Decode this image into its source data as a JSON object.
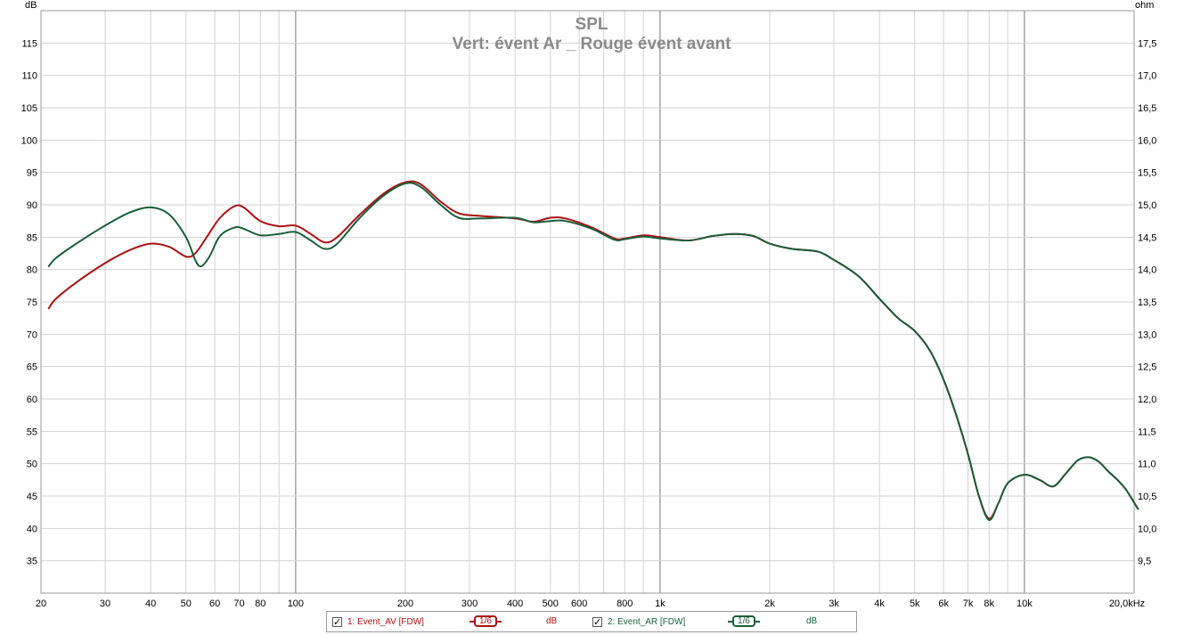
{
  "chart_data": {
    "type": "line",
    "title": "SPL",
    "subtitle": "Vert: évent Ar _ Rouge évent avant",
    "ylabel_left": "dB",
    "ylabel_right": "ohm",
    "xscale": "log",
    "xlim": [
      20,
      20000
    ],
    "ylim": [
      30,
      120
    ],
    "ylim_right": [
      9.0,
      18.0
    ],
    "grid": true,
    "y_ticks": [
      35,
      40,
      45,
      50,
      55,
      60,
      65,
      70,
      75,
      80,
      85,
      90,
      95,
      100,
      105,
      110,
      115
    ],
    "y_right_ticks": [
      "9,5",
      "10,0",
      "10,5",
      "11,0",
      "11,5",
      "12,0",
      "12,5",
      "13,0",
      "13,5",
      "14,0",
      "14,5",
      "15,0",
      "15,5",
      "16,0",
      "16,5",
      "17,0",
      "17,5"
    ],
    "x_ticks": [
      {
        "v": 20,
        "label": "20"
      },
      {
        "v": 30,
        "label": "30"
      },
      {
        "v": 40,
        "label": "40"
      },
      {
        "v": 50,
        "label": "50"
      },
      {
        "v": 60,
        "label": "60"
      },
      {
        "v": 70,
        "label": "70"
      },
      {
        "v": 80,
        "label": "80"
      },
      {
        "v": 100,
        "label": "100"
      },
      {
        "v": 200,
        "label": "200"
      },
      {
        "v": 300,
        "label": "300"
      },
      {
        "v": 400,
        "label": "400"
      },
      {
        "v": 500,
        "label": "500"
      },
      {
        "v": 600,
        "label": "600"
      },
      {
        "v": 800,
        "label": "800"
      },
      {
        "v": 1000,
        "label": "1k"
      },
      {
        "v": 2000,
        "label": "2k"
      },
      {
        "v": 3000,
        "label": "3k"
      },
      {
        "v": 4000,
        "label": "4k"
      },
      {
        "v": 5000,
        "label": "5k"
      },
      {
        "v": 6000,
        "label": "6k"
      },
      {
        "v": 7000,
        "label": "7k"
      },
      {
        "v": 8000,
        "label": "8k"
      },
      {
        "v": 10000,
        "label": "10k"
      },
      {
        "v": 20000,
        "label": "20,0kHz"
      }
    ],
    "series": [
      {
        "name": "1: Event_AV [FDW]",
        "color": "#aa1111",
        "points": [
          [
            21,
            74
          ],
          [
            22,
            75.5
          ],
          [
            25,
            78
          ],
          [
            30,
            81
          ],
          [
            35,
            83
          ],
          [
            40,
            84
          ],
          [
            45,
            83.5
          ],
          [
            50,
            82
          ],
          [
            53,
            82.5
          ],
          [
            57,
            85
          ],
          [
            62,
            88
          ],
          [
            68,
            89.8
          ],
          [
            72,
            89.6
          ],
          [
            80,
            87.5
          ],
          [
            90,
            86.7
          ],
          [
            100,
            86.8
          ],
          [
            110,
            85.5
          ],
          [
            120,
            84.2
          ],
          [
            130,
            85
          ],
          [
            150,
            88.5
          ],
          [
            175,
            91.8
          ],
          [
            200,
            93.5
          ],
          [
            220,
            93.2
          ],
          [
            250,
            90.5
          ],
          [
            280,
            88.7
          ],
          [
            320,
            88.3
          ],
          [
            400,
            87.9
          ],
          [
            450,
            87.4
          ],
          [
            500,
            88
          ],
          [
            550,
            87.9
          ],
          [
            650,
            86.5
          ],
          [
            750,
            84.8
          ],
          [
            800,
            84.8
          ],
          [
            900,
            85.3
          ],
          [
            1000,
            85
          ],
          [
            1200,
            84.5
          ],
          [
            1400,
            85.2
          ],
          [
            1600,
            85.5
          ],
          [
            1800,
            85.2
          ],
          [
            2000,
            84
          ],
          [
            2300,
            83.2
          ],
          [
            2700,
            82.8
          ],
          [
            3000,
            81.5
          ],
          [
            3500,
            79
          ],
          [
            4000,
            75.5
          ],
          [
            4500,
            72.5
          ],
          [
            5000,
            70.5
          ],
          [
            5500,
            67.5
          ],
          [
            6000,
            63
          ],
          [
            6500,
            57.5
          ],
          [
            7000,
            51.5
          ],
          [
            7500,
            45
          ],
          [
            8000,
            41.5
          ],
          [
            8500,
            44
          ],
          [
            9000,
            47
          ],
          [
            10000,
            48.3
          ],
          [
            11000,
            47.5
          ],
          [
            12000,
            46.5
          ],
          [
            13000,
            48.5
          ],
          [
            14000,
            50.5
          ],
          [
            15000,
            51
          ],
          [
            16000,
            50.3
          ],
          [
            17000,
            48.8
          ],
          [
            18000,
            47.5
          ],
          [
            19000,
            46
          ],
          [
            20500,
            43
          ]
        ]
      },
      {
        "name": "2: Event_AR [FDW]",
        "color": "#1a5e3a",
        "points": [
          [
            21,
            80.5
          ],
          [
            22,
            81.8
          ],
          [
            25,
            84
          ],
          [
            30,
            86.8
          ],
          [
            35,
            88.8
          ],
          [
            40,
            89.6
          ],
          [
            45,
            88.5
          ],
          [
            50,
            85
          ],
          [
            53,
            81.5
          ],
          [
            55,
            80.5
          ],
          [
            58,
            82
          ],
          [
            62,
            85.2
          ],
          [
            68,
            86.5
          ],
          [
            72,
            86.3
          ],
          [
            80,
            85.3
          ],
          [
            90,
            85.5
          ],
          [
            100,
            85.8
          ],
          [
            110,
            84.5
          ],
          [
            120,
            83.2
          ],
          [
            130,
            84
          ],
          [
            150,
            88
          ],
          [
            175,
            91.5
          ],
          [
            200,
            93.3
          ],
          [
            220,
            92.8
          ],
          [
            250,
            90
          ],
          [
            280,
            88
          ],
          [
            320,
            87.9
          ],
          [
            400,
            88
          ],
          [
            450,
            87.3
          ],
          [
            500,
            87.5
          ],
          [
            550,
            87.5
          ],
          [
            650,
            86.3
          ],
          [
            750,
            84.6
          ],
          [
            800,
            84.7
          ],
          [
            900,
            85.1
          ],
          [
            1000,
            84.8
          ],
          [
            1200,
            84.5
          ],
          [
            1400,
            85.2
          ],
          [
            1600,
            85.5
          ],
          [
            1800,
            85.2
          ],
          [
            2000,
            84
          ],
          [
            2300,
            83.2
          ],
          [
            2700,
            82.8
          ],
          [
            3000,
            81.5
          ],
          [
            3500,
            79
          ],
          [
            4000,
            75.5
          ],
          [
            4500,
            72.5
          ],
          [
            5000,
            70.5
          ],
          [
            5500,
            67.5
          ],
          [
            6000,
            63
          ],
          [
            6500,
            57.5
          ],
          [
            7000,
            51.5
          ],
          [
            7500,
            45
          ],
          [
            8000,
            41.3
          ],
          [
            8500,
            44
          ],
          [
            9000,
            47
          ],
          [
            10000,
            48.3
          ],
          [
            11000,
            47.5
          ],
          [
            12000,
            46.5
          ],
          [
            13000,
            48.5
          ],
          [
            14000,
            50.5
          ],
          [
            15000,
            51
          ],
          [
            16000,
            50.3
          ],
          [
            17000,
            48.8
          ],
          [
            18000,
            47.5
          ],
          [
            19000,
            46
          ],
          [
            20500,
            43
          ]
        ]
      }
    ]
  },
  "legend": {
    "items": [
      {
        "label": "1: Event_AV [FDW]",
        "smoothing": "1/6",
        "unit": "dB",
        "color": "#aa1111"
      },
      {
        "label": "2: Event_AR [FDW]",
        "smoothing": "1/6",
        "unit": "dB",
        "color": "#1a5e3a"
      }
    ]
  }
}
